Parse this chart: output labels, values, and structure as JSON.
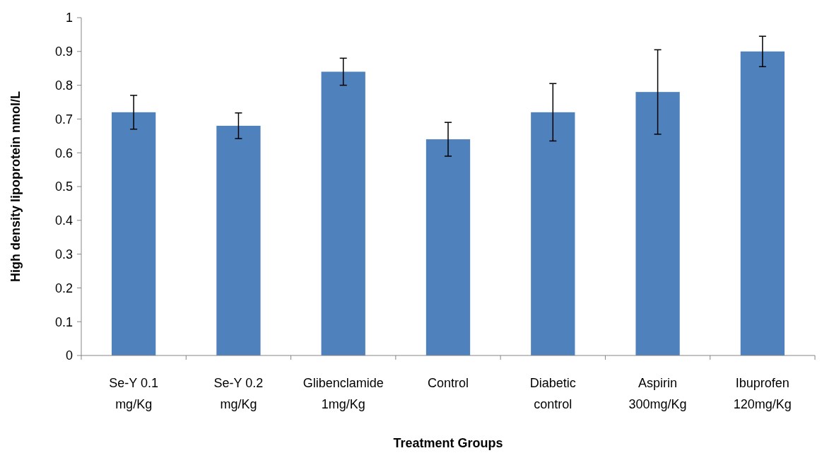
{
  "chart_data": {
    "type": "bar",
    "xlabel": "Treatment Groups",
    "ylabel": "High density lipoprotein nmol/L",
    "categories": [
      "Se-Y 0.1 mg/Kg",
      "Se-Y 0.2 mg/Kg",
      "Glibenclamide 1mg/Kg",
      "Control",
      "Diabetic control",
      "Aspirin 300mg/Kg",
      "Ibuprofen 120mg/Kg"
    ],
    "values": [
      0.72,
      0.68,
      0.84,
      0.64,
      0.72,
      0.78,
      0.9
    ],
    "errors": [
      0.05,
      0.038,
      0.04,
      0.05,
      0.085,
      0.125,
      0.045
    ],
    "color": "#4f81bd",
    "ylim": [
      0,
      1
    ],
    "yticks": [
      0,
      0.1,
      0.2,
      0.3,
      0.4,
      0.5,
      0.6,
      0.7,
      0.8,
      0.9,
      1
    ],
    "grid": false
  }
}
